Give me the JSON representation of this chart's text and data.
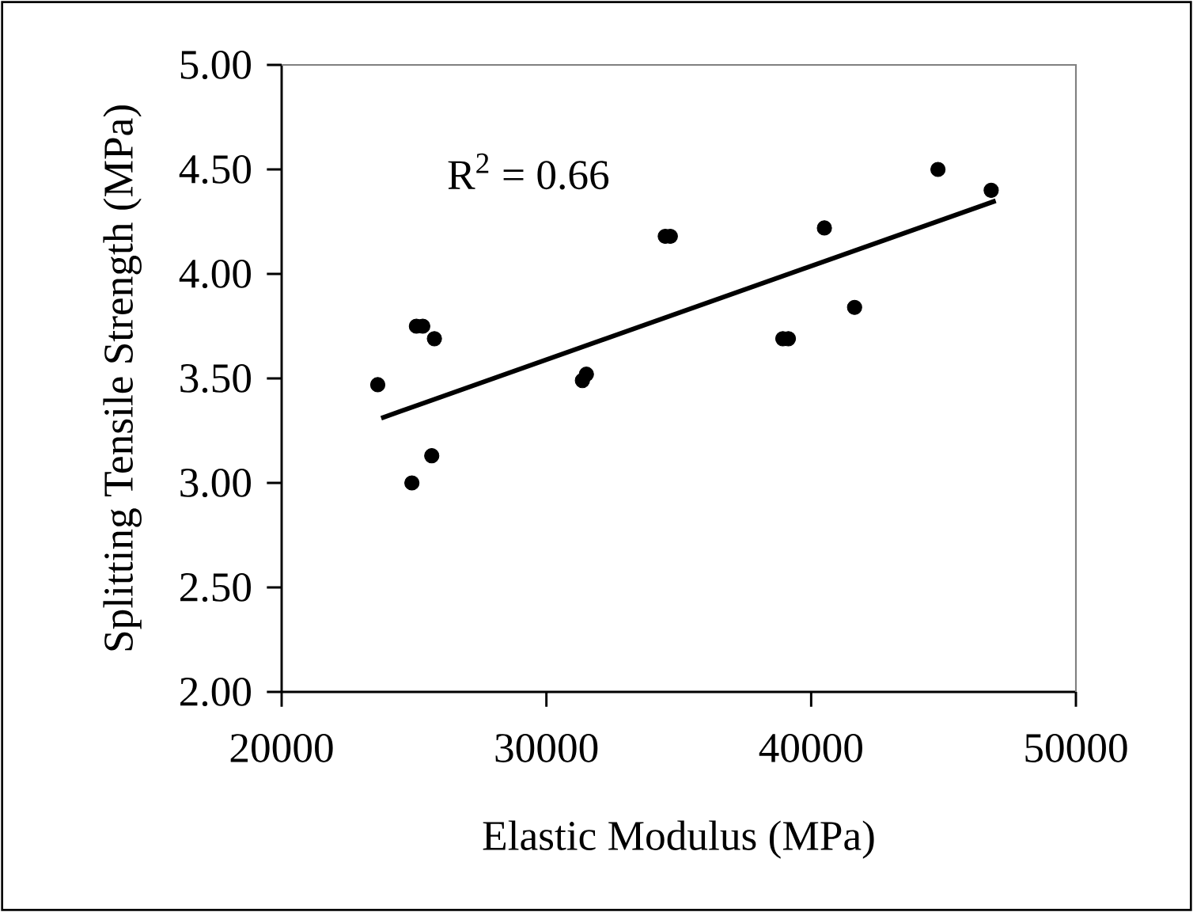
{
  "chart_data": {
    "type": "scatter",
    "xlabel": "Elastic Modulus (MPa)",
    "ylabel": "Splitting Tensile Strength (MPa)",
    "annotations": [
      "R$^{2}$ = 0.66"
    ],
    "xlim": [
      20000,
      50000
    ],
    "ylim": [
      2,
      5
    ],
    "xticks": [
      20000,
      30000,
      40000,
      50000
    ],
    "yticks": [
      {
        "value": 2,
        "label": "2.00"
      },
      {
        "value": 2.5,
        "label": "2.50"
      },
      {
        "value": 3,
        "label": "3.00"
      },
      {
        "value": 3.5,
        "label": "3.50"
      },
      {
        "value": 4,
        "label": "4.00"
      },
      {
        "value": 4.5,
        "label": "4.50"
      },
      {
        "value": 5,
        "label": "5.00"
      }
    ],
    "series": [
      {
        "type": "scatter",
        "color": "#000000",
        "marker": "circle",
        "x": [
          23630,
          24920,
          25090,
          25330,
          25670,
          25770,
          31360,
          31510,
          34490,
          34680,
          38930,
          39140,
          40500,
          41640,
          44790,
          46800
        ],
        "values": [
          3.47,
          3.0,
          3.75,
          3.75,
          3.13,
          3.69,
          3.49,
          3.52,
          4.18,
          4.18,
          3.69,
          3.69,
          4.22,
          3.84,
          4.5,
          4.4
        ]
      },
      {
        "type": "line",
        "color": "#000000",
        "marker": "none",
        "line_style": "solid",
        "x": [
          23760,
          46970
        ],
        "values": [
          3.31,
          4.35
        ]
      }
    ]
  }
}
